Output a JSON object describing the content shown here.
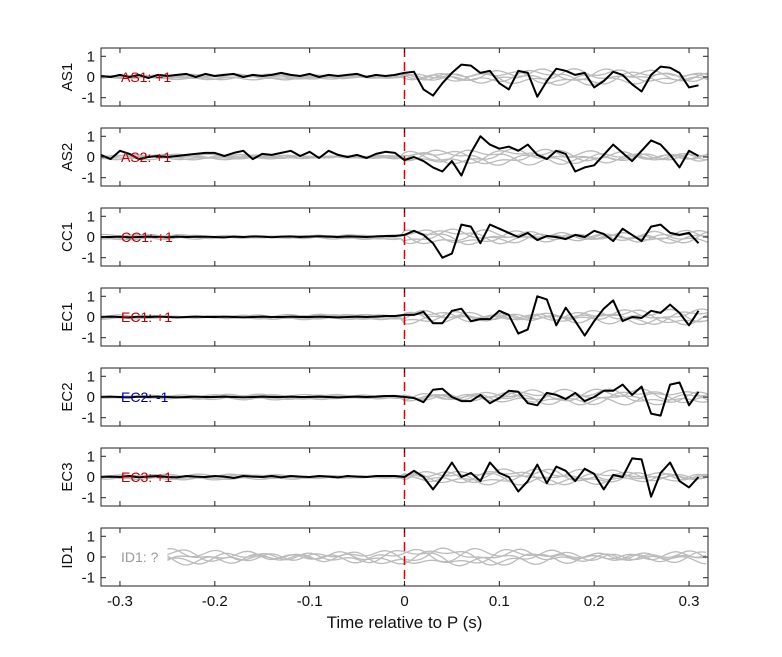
{
  "chart_data": {
    "type": "line",
    "xlabel": "Time relative to P (s)",
    "xlim": [
      -0.32,
      0.32
    ],
    "x_ticks": [
      -0.3,
      -0.2,
      -0.1,
      0,
      0.1,
      0.2,
      0.3
    ],
    "x_tick_labels": [
      "-0.3",
      "-0.2",
      "-0.1",
      "0",
      "0.1",
      "0.2",
      "0.3"
    ],
    "ylim": [
      -1.4,
      1.4
    ],
    "y_ticks": [
      -1,
      0,
      1
    ],
    "y_tick_labels": [
      "-1",
      "0",
      "1"
    ],
    "p_arrival_time": 0,
    "colors": {
      "positive": "#c00000",
      "negative": "#0000aa",
      "unknown": "#999999",
      "trace": "#000000",
      "background_traces": "#bbbbbb",
      "p_marker": "#e00000"
    },
    "panels": [
      {
        "station": "AS1",
        "polarity_label": "AS1: +1",
        "polarity": "positive",
        "trace": {
          "x": [
            -0.32,
            -0.31,
            -0.3,
            -0.29,
            -0.28,
            -0.27,
            -0.26,
            -0.25,
            -0.24,
            -0.23,
            -0.22,
            -0.21,
            -0.2,
            -0.19,
            -0.18,
            -0.17,
            -0.16,
            -0.15,
            -0.14,
            -0.13,
            -0.12,
            -0.11,
            -0.1,
            -0.09,
            -0.08,
            -0.07,
            -0.06,
            -0.05,
            -0.04,
            -0.03,
            -0.02,
            -0.01,
            0,
            0.01,
            0.02,
            0.03,
            0.04,
            0.05,
            0.06,
            0.07,
            0.08,
            0.09,
            0.1,
            0.11,
            0.12,
            0.13,
            0.14,
            0.15,
            0.16,
            0.17,
            0.18,
            0.19,
            0.2,
            0.21,
            0.22,
            0.23,
            0.24,
            0.25,
            0.26,
            0.27,
            0.28,
            0.29,
            0.3,
            0.31
          ],
          "y": [
            0.05,
            0,
            0.1,
            0,
            0.1,
            -0.05,
            0.1,
            0.05,
            0.1,
            0.15,
            0,
            0.15,
            0.05,
            0.1,
            0.15,
            0,
            0.1,
            0.05,
            0.1,
            0.2,
            0.1,
            0.05,
            0.15,
            0,
            0.1,
            0.05,
            0.1,
            0.15,
            0,
            0.1,
            0.05,
            0.1,
            0.2,
            0.25,
            -0.6,
            -0.9,
            -0.3,
            0.2,
            0.6,
            0.55,
            0.2,
            0.3,
            -0.3,
            -0.6,
            0.3,
            0.2,
            -0.95,
            -0.2,
            0.4,
            0.3,
            0.1,
            0.2,
            -0.5,
            -0.2,
            0.25,
            0.1,
            -0.35,
            -0.7,
            0.1,
            0.5,
            0.45,
            0.2,
            -0.5,
            -0.4
          ]
        },
        "background": [
          {
            "x": [
              -0.32,
              0.32
            ],
            "y": [
              0,
              0
            ]
          }
        ]
      },
      {
        "station": "AS2",
        "polarity_label": "AS2: +1",
        "polarity": "positive",
        "trace": {
          "x": [
            -0.32,
            -0.31,
            -0.3,
            -0.29,
            -0.28,
            -0.27,
            -0.26,
            -0.25,
            -0.24,
            -0.23,
            -0.22,
            -0.21,
            -0.2,
            -0.19,
            -0.18,
            -0.17,
            -0.16,
            -0.15,
            -0.14,
            -0.13,
            -0.12,
            -0.11,
            -0.1,
            -0.09,
            -0.08,
            -0.07,
            -0.06,
            -0.05,
            -0.04,
            -0.03,
            -0.02,
            -0.01,
            0,
            0.01,
            0.02,
            0.03,
            0.04,
            0.05,
            0.06,
            0.07,
            0.08,
            0.09,
            0.1,
            0.11,
            0.12,
            0.13,
            0.14,
            0.15,
            0.16,
            0.17,
            0.18,
            0.19,
            0.2,
            0.21,
            0.22,
            0.23,
            0.24,
            0.25,
            0.26,
            0.27,
            0.28,
            0.29,
            0.3,
            0.31
          ],
          "y": [
            0.1,
            -0.1,
            0.3,
            0.15,
            -0.1,
            0,
            0.05,
            0,
            0.05,
            0.1,
            0.15,
            0.2,
            0.2,
            0.05,
            0.2,
            0.3,
            -0.1,
            0.15,
            0.1,
            0.2,
            0.3,
            0.05,
            0.25,
            -0.05,
            0.3,
            0.1,
            0,
            0.1,
            -0.05,
            0.15,
            0.25,
            0.2,
            -0.15,
            0,
            -0.2,
            -0.5,
            -0.7,
            -0.2,
            -0.9,
            0.2,
            1.0,
            0.6,
            0.4,
            0.5,
            0.3,
            0.6,
            0.1,
            -0.1,
            0.3,
            0.15,
            -0.7,
            -0.5,
            -0.4,
            0.1,
            0.6,
            0.2,
            -0.2,
            0.3,
            0.8,
            0.6,
            0.1,
            -0.5,
            0.3,
            0.05
          ]
        },
        "background": [
          {
            "x": [
              -0.32,
              0.32
            ],
            "y": [
              0,
              0
            ]
          }
        ]
      },
      {
        "station": "CC1",
        "polarity_label": "CC1: +1",
        "polarity": "positive",
        "trace": {
          "x": [
            -0.32,
            -0.31,
            -0.3,
            -0.29,
            -0.28,
            -0.27,
            -0.26,
            -0.25,
            -0.24,
            -0.23,
            -0.22,
            -0.21,
            -0.2,
            -0.19,
            -0.18,
            -0.17,
            -0.16,
            -0.15,
            -0.14,
            -0.13,
            -0.12,
            -0.11,
            -0.1,
            -0.09,
            -0.08,
            -0.07,
            -0.06,
            -0.05,
            -0.04,
            -0.03,
            -0.02,
            -0.01,
            0,
            0.01,
            0.02,
            0.03,
            0.04,
            0.05,
            0.06,
            0.07,
            0.08,
            0.09,
            0.1,
            0.11,
            0.12,
            0.13,
            0.14,
            0.15,
            0.16,
            0.17,
            0.18,
            0.19,
            0.2,
            0.21,
            0.22,
            0.23,
            0.24,
            0.25,
            0.26,
            0.27,
            0.28,
            0.29,
            0.3,
            0.31
          ],
          "y": [
            0,
            0,
            0.02,
            -0.02,
            0,
            0.02,
            0,
            -0.02,
            0.02,
            0,
            0.01,
            0.02,
            0,
            -0.02,
            0.02,
            0,
            0.03,
            0.02,
            -0.01,
            0.02,
            0.03,
            0,
            0.02,
            0.04,
            0.02,
            0,
            0.03,
            0.02,
            0,
            0.03,
            0.05,
            0.05,
            0.1,
            0.3,
            0.1,
            -0.3,
            -1.0,
            -0.8,
            0.6,
            0.5,
            -0.3,
            0.6,
            0.4,
            0.2,
            0,
            0.2,
            -0.15,
            0.05,
            0,
            -0.1,
            0.1,
            0,
            0.3,
            0.15,
            -0.2,
            0.4,
            0.1,
            -0.2,
            0.5,
            0.6,
            0.2,
            0.1,
            0.2,
            -0.3
          ]
        },
        "background": [
          {
            "x": [
              -0.32,
              0.32
            ],
            "y": [
              0,
              0
            ]
          }
        ]
      },
      {
        "station": "EC1",
        "polarity_label": "EC1: +1",
        "polarity": "positive",
        "trace": {
          "x": [
            -0.32,
            -0.31,
            -0.3,
            -0.29,
            -0.28,
            -0.27,
            -0.26,
            -0.25,
            -0.24,
            -0.23,
            -0.22,
            -0.21,
            -0.2,
            -0.19,
            -0.18,
            -0.17,
            -0.16,
            -0.15,
            -0.14,
            -0.13,
            -0.12,
            -0.11,
            -0.1,
            -0.09,
            -0.08,
            -0.07,
            -0.06,
            -0.05,
            -0.04,
            -0.03,
            -0.02,
            -0.01,
            0,
            0.01,
            0.02,
            0.03,
            0.04,
            0.05,
            0.06,
            0.07,
            0.08,
            0.09,
            0.1,
            0.11,
            0.12,
            0.13,
            0.14,
            0.15,
            0.16,
            0.17,
            0.18,
            0.19,
            0.2,
            0.21,
            0.22,
            0.23,
            0.24,
            0.25,
            0.26,
            0.27,
            0.28,
            0.29,
            0.3,
            0.31
          ],
          "y": [
            0,
            0.02,
            0,
            -0.02,
            0.02,
            0,
            0.02,
            0,
            -0.02,
            0,
            0.02,
            0,
            0,
            0.02,
            0,
            -0.02,
            0,
            0.02,
            0,
            0,
            0.02,
            0,
            0,
            0.02,
            0,
            -0.02,
            0,
            0.02,
            0,
            0.02,
            0.05,
            0.05,
            0.1,
            0.1,
            0.25,
            -0.3,
            -0.3,
            0.3,
            0.4,
            -0.2,
            -0.1,
            -0.1,
            0.3,
            0.1,
            -0.8,
            -0.6,
            1.0,
            0.85,
            -0.4,
            0.45,
            -0.2,
            -0.9,
            -0.2,
            0.4,
            0.8,
            -0.2,
            0,
            -0.05,
            0.3,
            0.2,
            0.6,
            0.2,
            -0.4,
            0.3
          ]
        },
        "background": [
          {
            "x": [
              -0.32,
              0.32
            ],
            "y": [
              0,
              0
            ]
          }
        ]
      },
      {
        "station": "EC2",
        "polarity_label": "EC2: -1",
        "polarity": "negative",
        "trace": {
          "x": [
            -0.32,
            -0.31,
            -0.3,
            -0.29,
            -0.28,
            -0.27,
            -0.26,
            -0.25,
            -0.24,
            -0.23,
            -0.22,
            -0.21,
            -0.2,
            -0.19,
            -0.18,
            -0.17,
            -0.16,
            -0.15,
            -0.14,
            -0.13,
            -0.12,
            -0.11,
            -0.1,
            -0.09,
            -0.08,
            -0.07,
            -0.06,
            -0.05,
            -0.04,
            -0.03,
            -0.02,
            -0.01,
            0,
            0.01,
            0.02,
            0.03,
            0.04,
            0.05,
            0.06,
            0.07,
            0.08,
            0.09,
            0.1,
            0.11,
            0.12,
            0.13,
            0.14,
            0.15,
            0.16,
            0.17,
            0.18,
            0.19,
            0.2,
            0.21,
            0.22,
            0.23,
            0.24,
            0.25,
            0.26,
            0.27,
            0.28,
            0.29,
            0.3,
            0.31
          ],
          "y": [
            0,
            0.02,
            0,
            -0.02,
            0.02,
            0,
            0.02,
            0,
            -0.02,
            0,
            0.02,
            0,
            0,
            0.02,
            0,
            -0.02,
            0,
            0.02,
            0,
            0,
            0.02,
            0,
            0,
            0.02,
            0,
            -0.02,
            0,
            0.02,
            0,
            0.02,
            0.05,
            0.05,
            0,
            -0.05,
            -0.25,
            0.35,
            0.4,
            0,
            -0.2,
            -0.2,
            0.1,
            -0.3,
            -0.05,
            0.3,
            0.25,
            -0.3,
            -0.4,
            0.2,
            0.1,
            -0.1,
            0.2,
            -0.2,
            0,
            0.3,
            0.3,
            0.6,
            0.1,
            0.5,
            -0.8,
            -0.9,
            0.6,
            0.7,
            -0.4,
            0.25
          ]
        },
        "background": [
          {
            "x": [
              -0.32,
              0.32
            ],
            "y": [
              0,
              0
            ]
          }
        ]
      },
      {
        "station": "EC3",
        "polarity_label": "EC3: +1",
        "polarity": "positive",
        "trace": {
          "x": [
            -0.32,
            -0.31,
            -0.3,
            -0.29,
            -0.28,
            -0.27,
            -0.26,
            -0.25,
            -0.24,
            -0.23,
            -0.22,
            -0.21,
            -0.2,
            -0.19,
            -0.18,
            -0.17,
            -0.16,
            -0.15,
            -0.14,
            -0.13,
            -0.12,
            -0.11,
            -0.1,
            -0.09,
            -0.08,
            -0.07,
            -0.06,
            -0.05,
            -0.04,
            -0.03,
            -0.02,
            -0.01,
            0,
            0.01,
            0.02,
            0.03,
            0.04,
            0.05,
            0.06,
            0.07,
            0.08,
            0.09,
            0.1,
            0.11,
            0.12,
            0.13,
            0.14,
            0.15,
            0.16,
            0.17,
            0.18,
            0.19,
            0.2,
            0.21,
            0.22,
            0.23,
            0.24,
            0.25,
            0.26,
            0.27,
            0.28,
            0.29,
            0.3,
            0.31
          ],
          "y": [
            0,
            0.02,
            0,
            0.05,
            -0.02,
            0.02,
            0.05,
            0,
            -0.02,
            0.05,
            0.02,
            0,
            0.05,
            0.02,
            -0.05,
            0.05,
            0.02,
            0,
            0.05,
            -0.02,
            0.05,
            0.02,
            0,
            0.05,
            0.02,
            -0.02,
            0.05,
            0.02,
            0,
            0.05,
            0.05,
            0.05,
            0,
            0.3,
            0,
            -0.6,
            0,
            0.7,
            0,
            0.2,
            -0.2,
            0.7,
            0.2,
            0,
            -0.7,
            -0.2,
            0.6,
            -0.3,
            0.5,
            0.3,
            -0.2,
            0.4,
            0.15,
            -0.6,
            0.1,
            0,
            0.9,
            0.85,
            -0.95,
            0.2,
            0.7,
            -0.2,
            -0.5,
            0
          ]
        },
        "background": [
          {
            "x": [
              -0.32,
              0.32
            ],
            "y": [
              0,
              0
            ]
          }
        ]
      },
      {
        "station": "ID1",
        "polarity_label": "ID1: ?",
        "polarity": "unknown",
        "trace": null,
        "background": [
          {
            "x": [
              -0.25,
              0.32
            ],
            "y": [
              0,
              0
            ]
          }
        ]
      }
    ]
  }
}
